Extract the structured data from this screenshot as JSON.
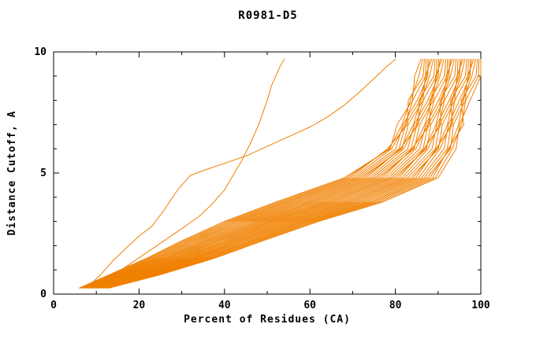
{
  "chart_data": {
    "type": "line",
    "title": "R0981-D5",
    "xlabel": "Percent of Residues (CA)",
    "ylabel": "Distance Cutoff, A",
    "xlim": [
      0,
      100
    ],
    "ylim": [
      0,
      10
    ],
    "x_major_ticks": [
      0,
      20,
      40,
      60,
      80,
      100
    ],
    "x_minor_step": 10,
    "y_major_ticks": [
      0,
      5,
      10
    ],
    "y_minor_step": 1,
    "grid": false,
    "legend": "none",
    "line_color": "#f08000",
    "axis_color": "#000000",
    "series_y_levels": [
      0.25,
      0.8,
      1.5,
      2.2,
      3.0,
      3.8,
      4.8,
      6.0,
      7.0,
      8.0,
      9.0,
      9.7
    ],
    "band_series_x": [
      [
        6.0,
        13.0,
        22.0,
        30.0,
        40.0,
        52.0,
        68.0,
        78.8,
        80.4,
        84.0,
        84.5,
        86.0
      ],
      [
        6.4,
        13.7,
        22.9,
        31.1,
        41.3,
        53.5,
        69.3,
        78.2,
        82.8,
        83.0,
        86.5,
        86.8
      ],
      [
        6.8,
        14.4,
        23.9,
        32.2,
        42.6,
        54.9,
        70.6,
        80.1,
        81.8,
        85.1,
        87.6,
        87.6
      ],
      [
        7.2,
        15.1,
        24.8,
        33.3,
        43.9,
        56.4,
        71.9,
        81.6,
        83.0,
        86.5,
        87.0,
        88.5
      ],
      [
        7.6,
        15.8,
        25.8,
        34.5,
        45.2,
        57.9,
        73.2,
        81.1,
        85.4,
        85.5,
        89.0,
        89.3
      ],
      [
        8.1,
        16.5,
        26.7,
        35.6,
        46.5,
        59.4,
        74.5,
        82.9,
        84.4,
        87.6,
        90.1,
        90.1
      ],
      [
        8.5,
        17.2,
        27.6,
        36.7,
        47.8,
        60.8,
        75.8,
        84.4,
        85.7,
        88.9,
        89.4,
        90.9
      ],
      [
        8.9,
        17.9,
        28.6,
        37.8,
        49.1,
        62.3,
        77.1,
        83.9,
        88.1,
        88.0,
        91.5,
        91.8
      ],
      [
        9.3,
        18.7,
        29.5,
        38.9,
        50.4,
        63.8,
        78.4,
        85.7,
        87.1,
        90.1,
        92.6,
        92.6
      ],
      [
        9.7,
        19.4,
        30.5,
        40.1,
        51.6,
        65.2,
        79.6,
        87.3,
        88.3,
        91.4,
        91.9,
        93.4
      ],
      [
        10.1,
        20.1,
        31.4,
        41.2,
        52.9,
        66.7,
        80.9,
        86.7,
        90.7,
        90.4,
        93.9,
        94.2
      ],
      [
        10.5,
        20.8,
        32.4,
        42.3,
        54.2,
        68.2,
        82.2,
        88.6,
        89.7,
        92.6,
        95.1,
        95.1
      ],
      [
        10.9,
        21.5,
        33.3,
        43.4,
        55.5,
        69.6,
        83.5,
        90.1,
        91.0,
        93.9,
        94.4,
        95.9
      ],
      [
        11.4,
        22.2,
        34.2,
        44.5,
        56.8,
        71.1,
        84.8,
        89.5,
        93.4,
        92.9,
        96.4,
        96.7
      ],
      [
        11.8,
        22.9,
        35.2,
        45.7,
        58.1,
        72.6,
        86.1,
        91.4,
        92.4,
        95.0,
        97.5,
        97.5
      ],
      [
        12.2,
        23.6,
        36.1,
        46.8,
        59.4,
        74.1,
        87.4,
        92.9,
        93.6,
        96.4,
        96.9,
        98.4
      ],
      [
        12.6,
        24.3,
        37.1,
        47.9,
        60.7,
        75.5,
        88.7,
        92.4,
        96.0,
        95.4,
        98.9,
        99.2
      ],
      [
        13.0,
        25.0,
        38.0,
        49.0,
        62.0,
        77.0,
        90.0,
        94.2,
        95.0,
        97.5,
        100.0,
        100.0
      ]
    ],
    "outlier_series": [
      [
        [
          8,
          0.3
        ],
        [
          11,
          0.8
        ],
        [
          14,
          1.4
        ],
        [
          17,
          1.9
        ],
        [
          20,
          2.4
        ],
        [
          23,
          2.8
        ],
        [
          26,
          3.5
        ],
        [
          29,
          4.3
        ],
        [
          32,
          4.9
        ],
        [
          35,
          5.1
        ],
        [
          40,
          5.4
        ],
        [
          45,
          5.7
        ],
        [
          50,
          6.1
        ],
        [
          55,
          6.5
        ],
        [
          60,
          6.9
        ],
        [
          64,
          7.3
        ],
        [
          68,
          7.8
        ],
        [
          72,
          8.4
        ],
        [
          75,
          8.9
        ],
        [
          78,
          9.4
        ],
        [
          80,
          9.7
        ]
      ],
      [
        [
          10,
          0.3
        ],
        [
          15,
          0.9
        ],
        [
          20,
          1.5
        ],
        [
          25,
          2.1
        ],
        [
          30,
          2.7
        ],
        [
          34,
          3.2
        ],
        [
          37,
          3.7
        ],
        [
          40,
          4.3
        ],
        [
          42,
          4.9
        ],
        [
          44,
          5.5
        ],
        [
          46,
          6.2
        ],
        [
          48,
          7.0
        ],
        [
          50,
          8.0
        ],
        [
          51,
          8.6
        ],
        [
          52,
          9.0
        ],
        [
          53,
          9.4
        ],
        [
          54,
          9.7
        ]
      ]
    ]
  }
}
